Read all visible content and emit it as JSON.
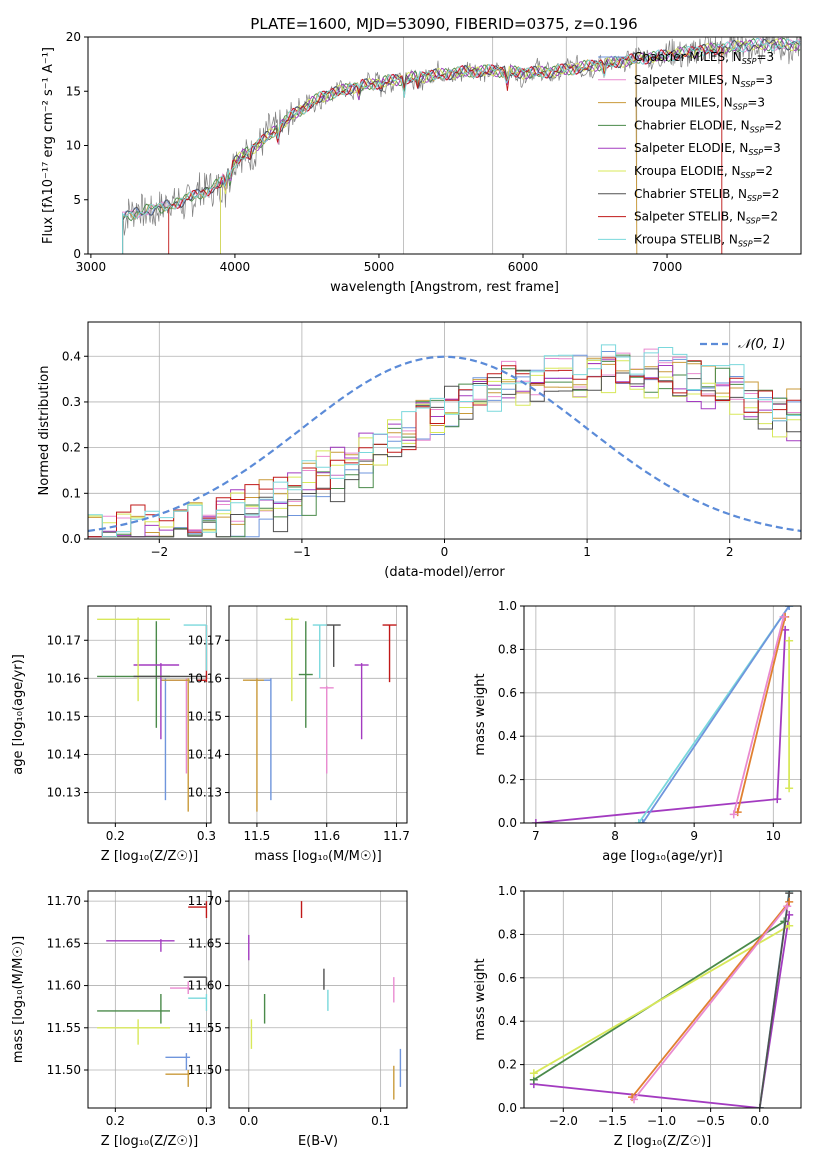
{
  "title": "PLATE=1600, MJD=53090, FIBERID=0375, z=0.196",
  "colors": {
    "chabrier_miles": "#6f95dc",
    "salpeter_miles": "#e98ad0",
    "kroupa_miles": "#c99a3a",
    "chabrier_elodie": "#4a8a4a",
    "salpeter_elodie": "#a33bc0",
    "kroupa_elodie": "#d8e85a",
    "chabrier_stelib": "#505050",
    "salpeter_stelib": "#c01818",
    "kroupa_stelib": "#7ad8dc",
    "data": "#808080",
    "orange": "#e08030",
    "normal": "#5b8bd8",
    "grid": "#b0b0b0"
  },
  "chart_data": [
    {
      "id": "spectrum",
      "type": "line",
      "title": "PLATE=1600, MJD=53090, FIBERID=0375, z=0.196",
      "xlabel": "wavelength [Angstrom, rest frame]",
      "ylabel_html": "Flux [f<tspan font-size='9' dy='-5'>λ</tspan>",
      "ylabel": "Flux [fλ10⁻¹⁷ erg cm⁻² s⁻¹ A⁻¹]",
      "xlim": [
        2980,
        7930
      ],
      "ylim": [
        0,
        20
      ],
      "xticks": [
        3000,
        4000,
        5000,
        6000,
        7000
      ],
      "yticks": [
        0,
        5,
        10,
        15,
        20
      ],
      "legend_position": "top-right",
      "legend": [
        {
          "label": "Chabrier MILES, N",
          "sub": "SSP",
          "suffix": "=3",
          "color_key": "chabrier_miles"
        },
        {
          "label": "Salpeter MILES, N",
          "sub": "SSP",
          "suffix": "=3",
          "color_key": "salpeter_miles"
        },
        {
          "label": "Kroupa MILES, N",
          "sub": "SSP",
          "suffix": "=3",
          "color_key": "kroupa_miles"
        },
        {
          "label": "Chabrier ELODIE, N",
          "sub": "SSP",
          "suffix": "=2",
          "color_key": "chabrier_elodie"
        },
        {
          "label": "Salpeter ELODIE, N",
          "sub": "SSP",
          "suffix": "=3",
          "color_key": "salpeter_elodie"
        },
        {
          "label": "Kroupa ELODIE, N",
          "sub": "SSP",
          "suffix": "=2",
          "color_key": "kroupa_elodie"
        },
        {
          "label": "Chabrier STELIB, N",
          "sub": "SSP",
          "suffix": "=2",
          "color_key": "chabrier_stelib"
        },
        {
          "label": "Salpeter STELIB, N",
          "sub": "SSP",
          "suffix": "=2",
          "color_key": "salpeter_stelib"
        },
        {
          "label": "Kroupa STELIB, N",
          "sub": "SSP",
          "suffix": "=2",
          "color_key": "kroupa_stelib"
        }
      ],
      "continuum_x": [
        3200,
        3300,
        3500,
        3700,
        3900,
        4000,
        4200,
        4400,
        4600,
        4800,
        5000,
        5200,
        5400,
        5600,
        5800,
        6000,
        6200,
        6400,
        6600,
        6800,
        7000,
        7200,
        7400,
        7600
      ],
      "continuum_y": [
        3.2,
        3.8,
        4.3,
        5.2,
        6.5,
        8.5,
        10.5,
        12.8,
        14.5,
        15.3,
        15.8,
        16.2,
        16.5,
        16.8,
        16.9,
        16.7,
        16.8,
        17.2,
        17.6,
        18.0,
        18.3,
        18.7,
        19.0,
        19.3
      ],
      "series_starts": [
        3220,
        3220,
        3220,
        3220,
        3900,
        3900,
        3220,
        3540,
        3220
      ],
      "series_ends": [
        7930,
        7930,
        6790,
        7930,
        7930,
        7930,
        7930,
        7380,
        7930
      ]
    },
    {
      "id": "residuals",
      "type": "bar",
      "xlabel": "(data-model)/error",
      "ylabel": "Normed distribution",
      "xlim": [
        -2.5,
        2.5
      ],
      "ylim": [
        0,
        0.475
      ],
      "xticks": [
        -2,
        -1,
        0,
        1,
        2
      ],
      "yticks": [
        0.0,
        0.1,
        0.2,
        0.3,
        0.4
      ],
      "bin_width": 0.1,
      "hist_profile": [
        0.02,
        0.02,
        0.025,
        0.03,
        0.03,
        0.035,
        0.04,
        0.045,
        0.05,
        0.06,
        0.065,
        0.075,
        0.09,
        0.1,
        0.11,
        0.13,
        0.15,
        0.16,
        0.17,
        0.19,
        0.2,
        0.22,
        0.24,
        0.26,
        0.27,
        0.29,
        0.3,
        0.31,
        0.32,
        0.33,
        0.34,
        0.34,
        0.35,
        0.35,
        0.36,
        0.37,
        0.37,
        0.37,
        0.37,
        0.36,
        0.36,
        0.35,
        0.35,
        0.34,
        0.33,
        0.32,
        0.3,
        0.29,
        0.28,
        0.27
      ],
      "gaussian_label": "𝒩(0, 1)"
    },
    {
      "id": "age_vs_Z",
      "type": "scatter",
      "xlabel": "Z [log₁₀(Z/Z☉)]",
      "ylabel": "age  [log₁₀(age/yr)]",
      "xlim": [
        0.17,
        0.305
      ],
      "ylim": [
        10.122,
        10.179
      ],
      "xticks": [
        0.2,
        0.3
      ],
      "yticks": [
        10.13,
        10.14,
        10.15,
        10.16,
        10.17
      ],
      "points": [
        {
          "color_key": "chabrier_miles",
          "x": 0.255,
          "y": 10.1595,
          "xerr": [
            0.25,
            0.28
          ],
          "yerr": [
            10.128,
            10.16
          ]
        },
        {
          "color_key": "salpeter_miles",
          "x": 0.278,
          "y": 10.1595,
          "xerr": [
            0.26,
            0.28
          ],
          "yerr": [
            10.135,
            10.16
          ]
        },
        {
          "color_key": "kroupa_miles",
          "x": 0.28,
          "y": 10.1595,
          "xerr": [
            0.25,
            0.282
          ],
          "yerr": [
            10.125,
            10.16
          ]
        },
        {
          "color_key": "chabrier_elodie",
          "x": 0.245,
          "y": 10.1605,
          "xerr": [
            0.18,
            0.26
          ],
          "yerr": [
            10.147,
            10.175
          ]
        },
        {
          "color_key": "salpeter_elodie",
          "x": 0.25,
          "y": 10.1635,
          "xerr": [
            0.22,
            0.27
          ],
          "yerr": [
            10.144,
            10.164
          ]
        },
        {
          "color_key": "kroupa_elodie",
          "x": 0.225,
          "y": 10.1755,
          "xerr": [
            0.18,
            0.26
          ],
          "yerr": [
            10.154,
            10.176
          ]
        },
        {
          "color_key": "chabrier_stelib",
          "x": 0.3,
          "y": 10.1605,
          "xerr": [
            0.22,
            0.3
          ],
          "yerr": [
            10.16,
            10.161
          ]
        },
        {
          "color_key": "salpeter_stelib",
          "x": 0.3,
          "y": 10.1595,
          "xerr": [
            0.29,
            0.3
          ],
          "yerr": [
            10.159,
            10.174
          ]
        },
        {
          "color_key": "kroupa_stelib",
          "x": 0.3,
          "y": 10.174,
          "xerr": [
            0.275,
            0.3
          ],
          "yerr": [
            10.162,
            10.174
          ]
        }
      ]
    },
    {
      "id": "age_vs_mass",
      "type": "scatter",
      "xlabel": "mass [log₁₀(M/M☉)]",
      "xlim": [
        11.46,
        11.715
      ],
      "ylim": [
        10.122,
        10.179
      ],
      "xticks": [
        11.5,
        11.6,
        11.7
      ],
      "yticks": [
        10.13,
        10.14,
        10.15,
        10.16,
        10.17
      ],
      "points": [
        {
          "color_key": "chabrier_miles",
          "x": 11.52,
          "y": 10.1595,
          "xerr": [
            11.49,
            11.52
          ],
          "yerr": [
            10.128,
            10.16
          ]
        },
        {
          "color_key": "salpeter_miles",
          "x": 11.6,
          "y": 10.1575,
          "xerr": [
            11.59,
            11.61
          ],
          "yerr": [
            10.135,
            10.158
          ]
        },
        {
          "color_key": "kroupa_miles",
          "x": 11.5,
          "y": 10.1595,
          "xerr": [
            11.48,
            11.51
          ],
          "yerr": [
            10.125,
            10.16
          ]
        },
        {
          "color_key": "chabrier_elodie",
          "x": 11.57,
          "y": 10.161,
          "xerr": [
            11.56,
            11.58
          ],
          "yerr": [
            10.147,
            10.175
          ]
        },
        {
          "color_key": "salpeter_elodie",
          "x": 11.65,
          "y": 10.1635,
          "xerr": [
            11.64,
            11.66
          ],
          "yerr": [
            10.144,
            10.164
          ]
        },
        {
          "color_key": "kroupa_elodie",
          "x": 11.55,
          "y": 10.1755,
          "xerr": [
            11.54,
            11.56
          ],
          "yerr": [
            10.154,
            10.176
          ]
        },
        {
          "color_key": "chabrier_stelib",
          "x": 11.61,
          "y": 10.174,
          "xerr": [
            11.6,
            11.62
          ],
          "yerr": [
            10.163,
            10.174
          ]
        },
        {
          "color_key": "salpeter_stelib",
          "x": 11.69,
          "y": 10.174,
          "xerr": [
            11.68,
            11.7
          ],
          "yerr": [
            10.159,
            10.174
          ]
        },
        {
          "color_key": "kroupa_stelib",
          "x": 11.59,
          "y": 10.174,
          "xerr": [
            11.58,
            11.6
          ],
          "yerr": [
            10.16,
            10.174
          ]
        }
      ]
    },
    {
      "id": "mass_weight_vs_age",
      "type": "line",
      "xlabel": "age  [log₁₀(age/yr)]",
      "ylabel": "mass weight",
      "xlim": [
        6.85,
        10.35
      ],
      "ylim": [
        0,
        1
      ],
      "xticks": [
        7,
        8,
        9,
        10
      ],
      "yticks": [
        0.0,
        0.2,
        0.4,
        0.6,
        0.8,
        1.0
      ],
      "series": [
        {
          "color_key": "salpeter_elodie",
          "x": [
            7.0,
            10.05,
            10.15
          ],
          "y": [
            0.0,
            0.11,
            0.89
          ]
        },
        {
          "color_key": "kroupa_stelib",
          "x": [
            8.3,
            10.2
          ],
          "y": [
            0.0,
            1.0
          ]
        },
        {
          "color_key": "chabrier_miles",
          "x": [
            8.35,
            10.2
          ],
          "y": [
            0.0,
            1.0
          ]
        },
        {
          "color_key": "orange",
          "x": [
            9.55,
            10.15
          ],
          "y": [
            0.05,
            0.95
          ]
        },
        {
          "color_key": "salpeter_miles",
          "x": [
            9.5,
            10.13
          ],
          "y": [
            0.04,
            0.95
          ]
        },
        {
          "color_key": "kroupa_elodie",
          "x": [
            10.2,
            10.2
          ],
          "y": [
            0.16,
            0.84
          ]
        }
      ]
    },
    {
      "id": "mass_vs_Z",
      "type": "scatter",
      "xlabel": "Z [log₁₀(Z/Z☉)]",
      "ylabel": "mass [log₁₀(M/M☉)]",
      "xlim": [
        0.17,
        0.305
      ],
      "ylim": [
        11.455,
        11.712
      ],
      "xticks": [
        0.2,
        0.3
      ],
      "yticks": [
        11.5,
        11.55,
        11.6,
        11.65,
        11.7
      ],
      "points": [
        {
          "color_key": "chabrier_miles",
          "x": 0.278,
          "y": 11.515,
          "xerr": [
            0.255,
            0.282
          ],
          "yerr": [
            11.5,
            11.52
          ]
        },
        {
          "color_key": "salpeter_miles",
          "x": 0.28,
          "y": 11.597,
          "xerr": [
            0.26,
            0.282
          ],
          "yerr": [
            11.59,
            11.605
          ]
        },
        {
          "color_key": "kroupa_miles",
          "x": 0.28,
          "y": 11.495,
          "xerr": [
            0.255,
            0.282
          ],
          "yerr": [
            11.48,
            11.5
          ]
        },
        {
          "color_key": "chabrier_elodie",
          "x": 0.25,
          "y": 11.57,
          "xerr": [
            0.18,
            0.26
          ],
          "yerr": [
            11.555,
            11.59
          ]
        },
        {
          "color_key": "salpeter_elodie",
          "x": 0.25,
          "y": 11.653,
          "xerr": [
            0.19,
            0.265
          ],
          "yerr": [
            11.64,
            11.655
          ]
        },
        {
          "color_key": "kroupa_elodie",
          "x": 0.225,
          "y": 11.55,
          "xerr": [
            0.18,
            0.26
          ],
          "yerr": [
            11.53,
            11.56
          ]
        },
        {
          "color_key": "chabrier_stelib",
          "x": 0.3,
          "y": 11.61,
          "xerr": [
            0.275,
            0.3
          ],
          "yerr": [
            11.6,
            11.61
          ]
        },
        {
          "color_key": "salpeter_stelib",
          "x": 0.3,
          "y": 11.693,
          "xerr": [
            0.28,
            0.3
          ],
          "yerr": [
            11.68,
            11.7
          ]
        },
        {
          "color_key": "kroupa_stelib",
          "x": 0.3,
          "y": 11.585,
          "xerr": [
            0.28,
            0.3
          ],
          "yerr": [
            11.57,
            11.59
          ]
        }
      ]
    },
    {
      "id": "mass_vs_ebv",
      "type": "scatter",
      "xlabel": "E(B-V)",
      "xlim": [
        -0.015,
        0.12
      ],
      "ylim": [
        11.455,
        11.712
      ],
      "xticks": [
        0.0,
        0.1
      ],
      "yticks": [
        11.5,
        11.55,
        11.6,
        11.65,
        11.7
      ],
      "points": [
        {
          "color_key": "chabrier_miles",
          "x": 0.115,
          "y": 11.505,
          "yerr": [
            11.48,
            11.525
          ]
        },
        {
          "color_key": "salpeter_miles",
          "x": 0.11,
          "y": 11.597,
          "yerr": [
            11.58,
            11.61
          ]
        },
        {
          "color_key": "kroupa_miles",
          "x": 0.11,
          "y": 11.49,
          "yerr": [
            11.465,
            11.505
          ]
        },
        {
          "color_key": "chabrier_elodie",
          "x": 0.012,
          "y": 11.575,
          "yerr": [
            11.555,
            11.59
          ]
        },
        {
          "color_key": "salpeter_elodie",
          "x": 0.0,
          "y": 11.648,
          "yerr": [
            11.63,
            11.66
          ]
        },
        {
          "color_key": "kroupa_elodie",
          "x": 0.002,
          "y": 11.545,
          "yerr": [
            11.525,
            11.56
          ]
        },
        {
          "color_key": "chabrier_stelib",
          "x": 0.057,
          "y": 11.608,
          "yerr": [
            11.595,
            11.62
          ]
        },
        {
          "color_key": "salpeter_stelib",
          "x": 0.04,
          "y": 11.69,
          "yerr": [
            11.68,
            11.7
          ]
        },
        {
          "color_key": "kroupa_stelib",
          "x": 0.06,
          "y": 11.58,
          "yerr": [
            11.57,
            11.595
          ]
        }
      ]
    },
    {
      "id": "mass_weight_vs_Z",
      "type": "line",
      "xlabel": "Z [log₁₀(Z/Z☉)]",
      "ylabel": "mass weight",
      "xlim": [
        -2.4,
        0.42
      ],
      "ylim": [
        0,
        1
      ],
      "xticks": [
        -2.0,
        -1.5,
        -1.0,
        -0.5,
        0.0
      ],
      "yticks": [
        0.0,
        0.2,
        0.4,
        0.6,
        0.8,
        1.0
      ],
      "series": [
        {
          "color_key": "salpeter_elodie",
          "x": [
            -2.3,
            0.0,
            0.3
          ],
          "y": [
            0.11,
            0.0,
            0.89
          ]
        },
        {
          "color_key": "chabrier_elodie",
          "x": [
            -2.3,
            0.25
          ],
          "y": [
            0.13,
            0.86
          ]
        },
        {
          "color_key": "kroupa_elodie",
          "x": [
            -2.3,
            0.3
          ],
          "y": [
            0.16,
            0.84
          ]
        },
        {
          "color_key": "kroupa_stelib",
          "x": [
            0.0,
            0.3
          ],
          "y": [
            0.0,
            1.0
          ]
        },
        {
          "color_key": "chabrier_stelib",
          "x": [
            0.0,
            0.3
          ],
          "y": [
            0.0,
            0.99
          ]
        },
        {
          "color_key": "orange",
          "x": [
            -1.3,
            0.3
          ],
          "y": [
            0.05,
            0.95
          ]
        },
        {
          "color_key": "salpeter_miles",
          "x": [
            -1.28,
            0.28
          ],
          "y": [
            0.04,
            0.93
          ]
        }
      ]
    }
  ]
}
